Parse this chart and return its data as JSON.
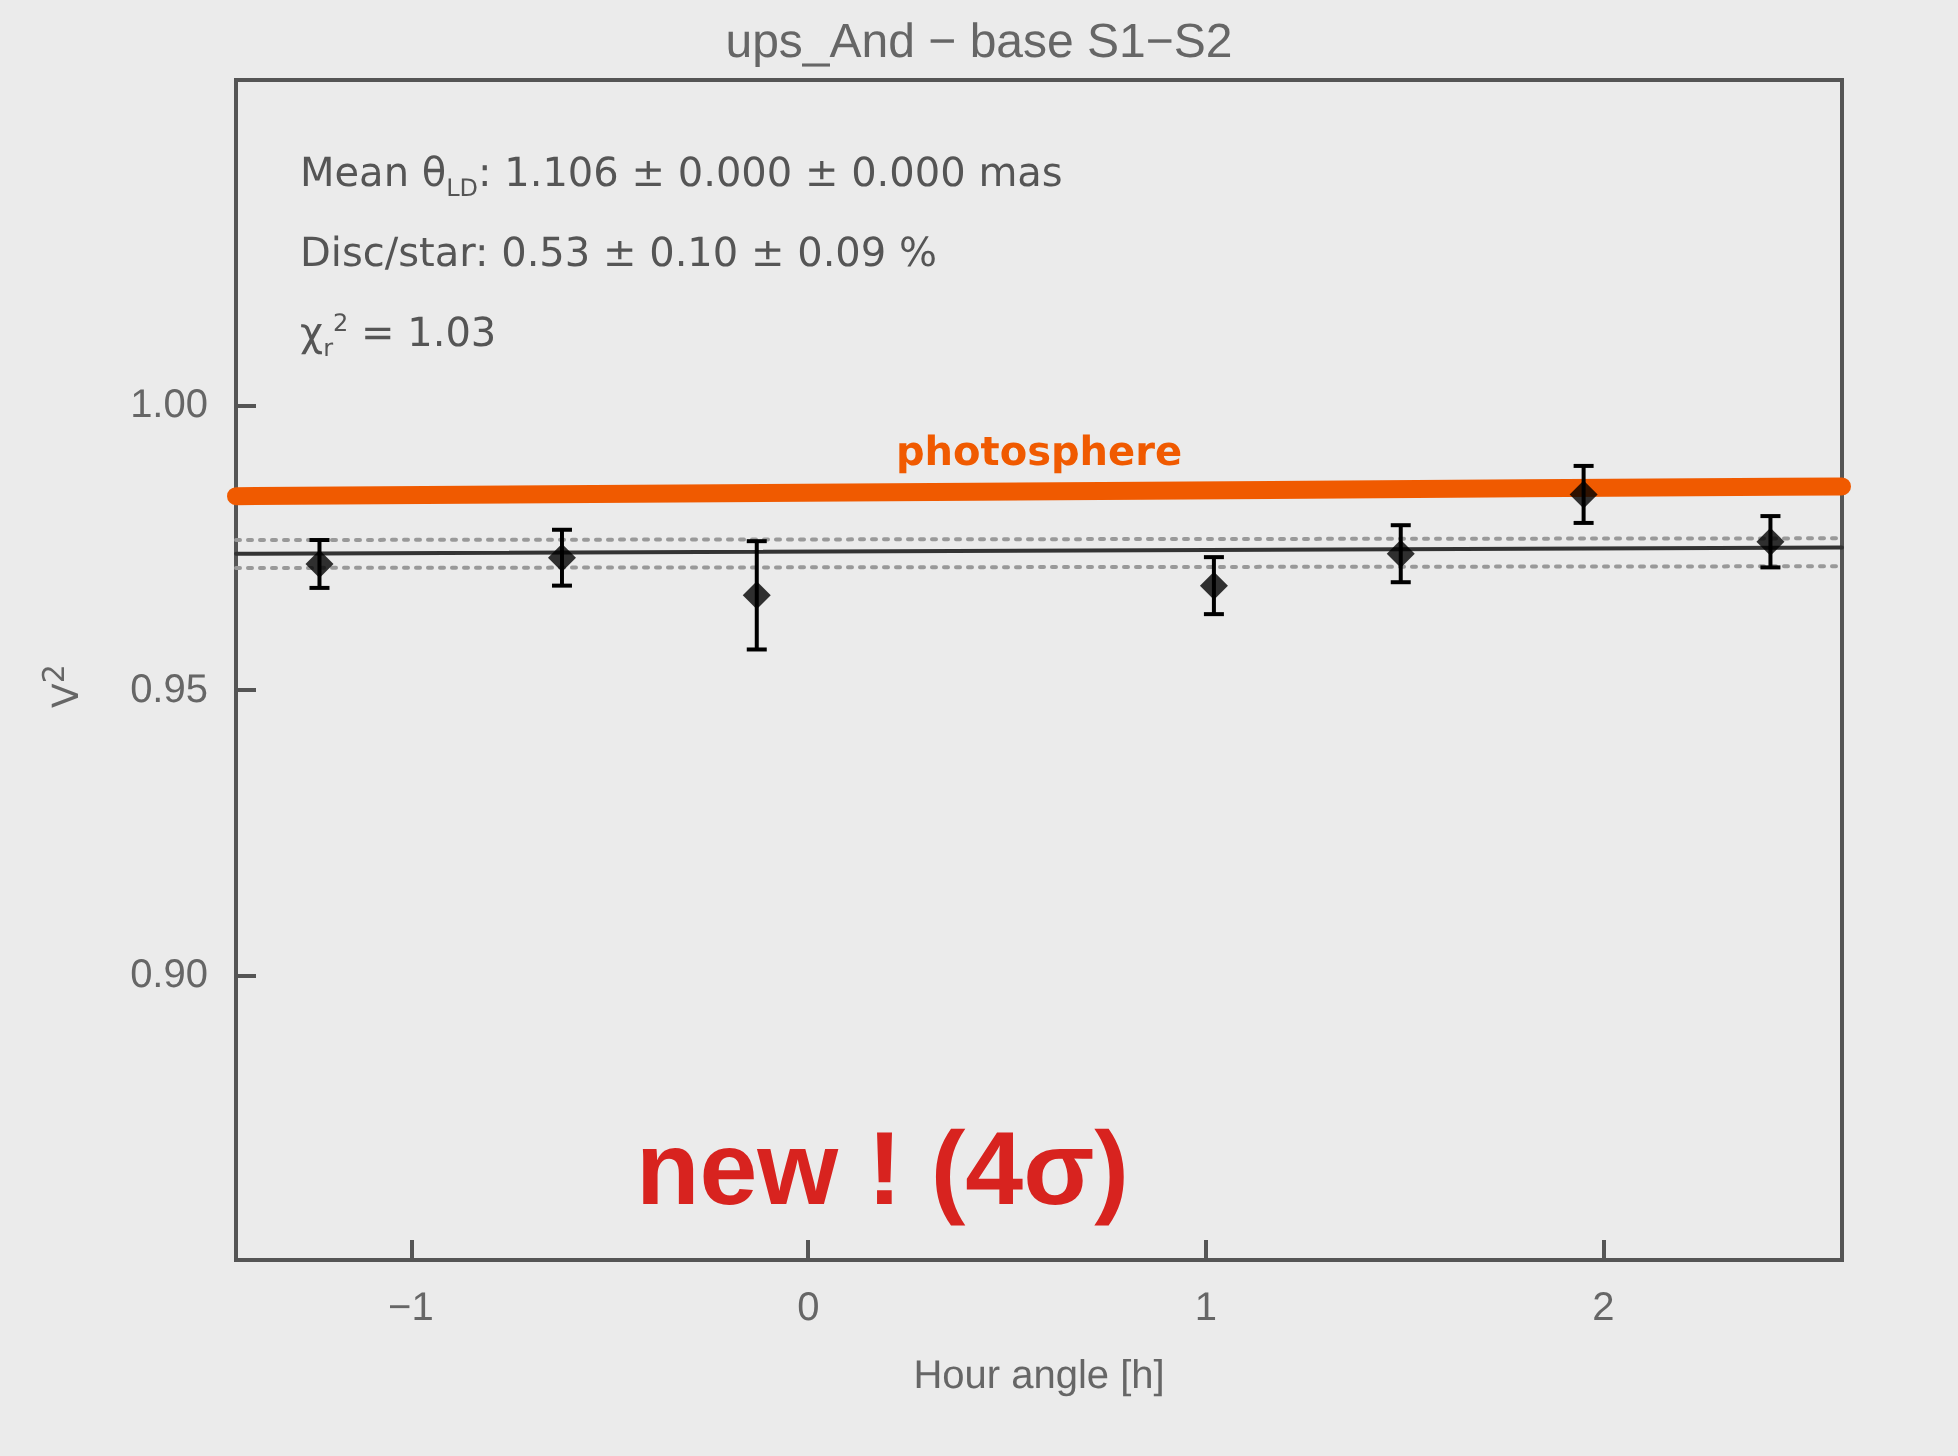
{
  "chart_data": {
    "type": "scatter",
    "title": "ups_And − base S1−S2",
    "xlabel": "Hour angle [h]",
    "ylabel": "V$^{2}$",
    "annotations": [
      "Mean θ$_{LD}$: 1.106 ± 0.000 ± 0.000 mas",
      "Disc/star:  0.53 ± 0.10 ± 0.09 %",
      "χ$_{r}$$^{2}$ =  1.03",
      "new ! (4σ)"
    ],
    "series": [
      {
        "name": "photosphere",
        "type": "line",
        "color": "#f05a00",
        "x": [
          -1.44,
          2.6
        ],
        "values": [
          0.984,
          0.9857
        ],
        "marker": "none",
        "line_style": "solid"
      },
      {
        "type": "line",
        "color": "#999999",
        "x": [
          -1.44,
          2.6
        ],
        "values": [
          0.9763,
          0.9766
        ],
        "marker": "none",
        "line_style": "dotted"
      },
      {
        "type": "line",
        "color": "#999999",
        "x": [
          -1.44,
          2.6
        ],
        "values": [
          0.9714,
          0.9717
        ],
        "marker": "none",
        "line_style": "dotted"
      },
      {
        "type": "line",
        "color": "#333333",
        "x": [
          -1.44,
          2.6
        ],
        "values": [
          0.9739,
          0.975
        ],
        "marker": "none",
        "line_style": "solid"
      },
      {
        "color": "#000000",
        "marker": "diamond",
        "x": [
          -1.23,
          -0.62,
          -0.13,
          1.02,
          1.49,
          1.95,
          2.42
        ],
        "values": [
          0.9721,
          0.9732,
          0.9666,
          0.9683,
          0.9739,
          0.9843,
          0.976
        ],
        "errors": [
          0.0042,
          0.0049,
          0.0095,
          0.005,
          0.005,
          0.005,
          0.0045
        ]
      }
    ],
    "xlim": [
      -1.44,
      2.6
    ],
    "xticks": [
      {
        "value": -1,
        "label": "−1"
      },
      0,
      1,
      2
    ],
    "ylim": [
      0.85,
      1.057
    ],
    "yticks": [
      {
        "value": 0.9,
        "label": "0.90"
      },
      {
        "value": 0.95,
        "label": "0.95"
      },
      {
        "value": 1,
        "label": "1.00"
      }
    ],
    "grid": false,
    "legend": false
  }
}
